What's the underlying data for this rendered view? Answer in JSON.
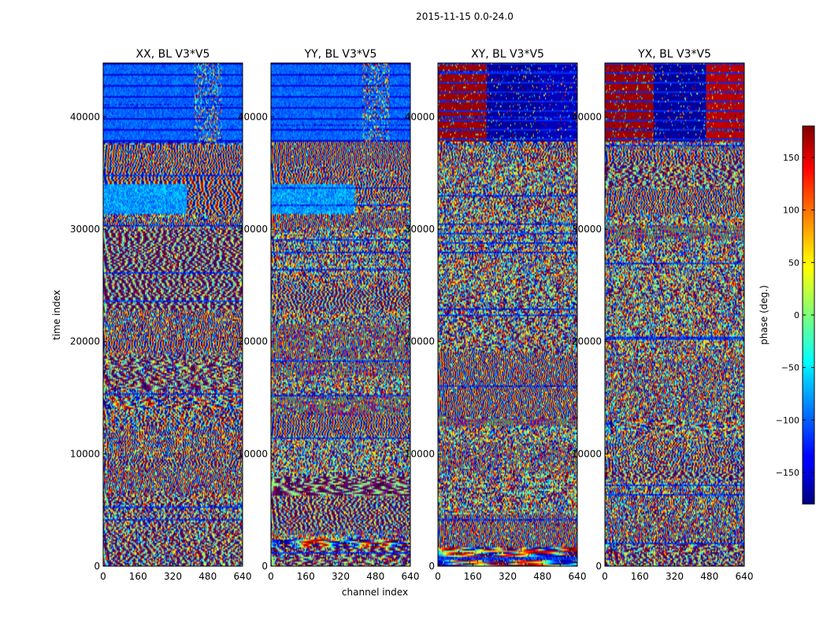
{
  "figure": {
    "suptitle": "2015-11-15 0.0-24.0",
    "xlabel": "channel index",
    "ylabel": "time index",
    "colorbar_label": "phase (deg.)",
    "colorbar_colormap": "jet",
    "colorbar_ticks": [
      150,
      100,
      50,
      0,
      -50,
      -100,
      -150
    ],
    "colorbar_tick_labels": [
      "150",
      "100",
      "50",
      "0",
      "−50",
      "−100",
      "−150"
    ],
    "colorbar_range": [
      -180,
      180
    ]
  },
  "chart_data": [
    {
      "type": "heatmap",
      "title": "XX, BL V3*V5",
      "x": {
        "label": "channel index",
        "range": [
          0,
          640
        ],
        "ticks": [
          0,
          160,
          320,
          480,
          640
        ]
      },
      "y": {
        "label": "time index",
        "range": [
          0,
          44800
        ],
        "ticks": [
          0,
          10000,
          20000,
          30000,
          40000
        ]
      },
      "z": {
        "label": "phase (deg.)",
        "range": [
          -180,
          180
        ]
      },
      "description_values": {
        "flagged_band_top_start": 38000,
        "cyan_patch_time": 33000
      }
    },
    {
      "type": "heatmap",
      "title": "YY, BL V3*V5",
      "x": {
        "label": "channel index",
        "range": [
          0,
          640
        ],
        "ticks": [
          0,
          160,
          320,
          480,
          640
        ]
      },
      "y": {
        "label": "time index",
        "range": [
          0,
          44800
        ],
        "ticks": [
          0,
          10000,
          20000,
          30000,
          40000
        ]
      },
      "z": {
        "label": "phase (deg.)",
        "range": [
          -180,
          180
        ]
      }
    },
    {
      "type": "heatmap",
      "title": "XY, BL V3*V5",
      "x": {
        "label": "channel index",
        "range": [
          0,
          640
        ],
        "ticks": [
          0,
          160,
          320,
          480,
          640
        ]
      },
      "y": {
        "label": "time index",
        "range": [
          0,
          44800
        ],
        "ticks": [
          0,
          10000,
          20000,
          30000,
          40000
        ]
      },
      "z": {
        "label": "phase (deg.)",
        "range": [
          -180,
          180
        ]
      }
    },
    {
      "type": "heatmap",
      "title": "YX, BL V3*V5",
      "x": {
        "label": "channel index",
        "range": [
          0,
          640
        ],
        "ticks": [
          0,
          160,
          320,
          480,
          640
        ]
      },
      "y": {
        "label": "time index",
        "range": [
          0,
          44800
        ],
        "ticks": [
          0,
          10000,
          20000,
          30000,
          40000
        ]
      },
      "z": {
        "label": "phase (deg.)",
        "range": [
          -180,
          180
        ]
      }
    }
  ]
}
